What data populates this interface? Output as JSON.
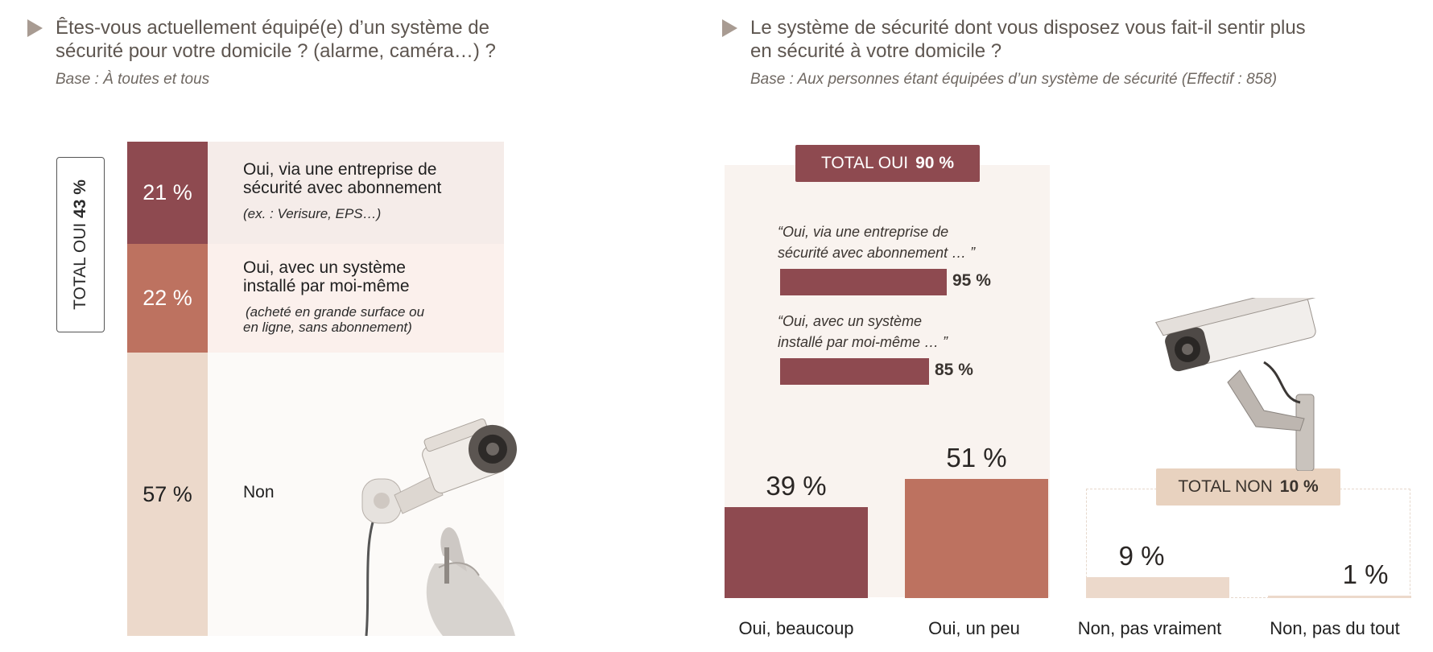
{
  "left": {
    "title_line1": "Êtes-vous actuellement équipé(e) d’un système de",
    "title_line2": "sécurité pour votre domicile ? (alarme, caméra…) ?",
    "base": "Base : À toutes et tous",
    "total_label": "TOTAL OUI",
    "total_value": "43 %",
    "rows": [
      {
        "value": "21 %",
        "label_line1": "Oui, via une entreprise de",
        "label_line2": "sécurité avec abonnement",
        "sub_line1": "(ex. : Verisure, EPS…)",
        "sub_line2": ""
      },
      {
        "value": "22 %",
        "label_line1": "Oui, avec un système",
        "label_line2": "installé par moi-même",
        "sub_line1": "(acheté en grande surface ou",
        "sub_line2": "en ligne, sans abonnement)"
      },
      {
        "value": "57 %",
        "label_line1": "Non",
        "label_line2": "",
        "sub_line1": "",
        "sub_line2": ""
      }
    ],
    "colors": {
      "row1": "#8e4a50",
      "row2": "#bd7260",
      "row3": "#ecd9cb",
      "bg1": "#f5ece9",
      "bg2": "#fbf0ec",
      "bg3": "#fcfaf8"
    }
  },
  "right": {
    "title_line1": "Le système de sécurité dont vous disposez vous fait-il sentir plus",
    "title_line2": "en sécurité à votre domicile ?",
    "base": "Base : Aux personnes étant équipées d’un système de sécurité (Effectif : 858)",
    "total_oui_label": "TOTAL OUI",
    "total_oui_value": "90 %",
    "total_non_label": "TOTAL NON",
    "total_non_value": "10 %",
    "sub_breakdown": [
      {
        "quote_line1": "“Oui, via une entreprise de",
        "quote_line2": "sécurité avec abonnement … ”",
        "value": 95,
        "label": "95 %"
      },
      {
        "quote_line1": "“Oui, avec un système",
        "quote_line2": "installé par moi-même … ”",
        "value": 85,
        "label": "85 %"
      }
    ]
  },
  "chart_data": [
    {
      "type": "bar",
      "title": "Êtes-vous actuellement équipé(e) d’un système de sécurité pour votre domicile ? (alarme, caméra…) ?",
      "categories": [
        "Oui, via une entreprise de sécurité avec abonnement",
        "Oui, avec un système installé par moi-même",
        "Non"
      ],
      "values": [
        21,
        22,
        57
      ],
      "unit": "%",
      "total_oui": 43
    },
    {
      "type": "bar",
      "title": "Le système de sécurité dont vous disposez vous fait-il sentir plus en sécurité à votre domicile ?",
      "categories": [
        "Oui, beaucoup",
        "Oui, un peu",
        "Non, pas vraiment",
        "Non, pas du tout"
      ],
      "values": [
        39,
        51,
        9,
        1
      ],
      "labels": [
        "39 %",
        "51 %",
        "9 %",
        "1 %"
      ],
      "colors": [
        "#8e4a50",
        "#bd7260",
        "#ecd9cb",
        "#ecd9cb"
      ],
      "unit": "%",
      "total_oui": 90,
      "total_non": 10
    }
  ]
}
